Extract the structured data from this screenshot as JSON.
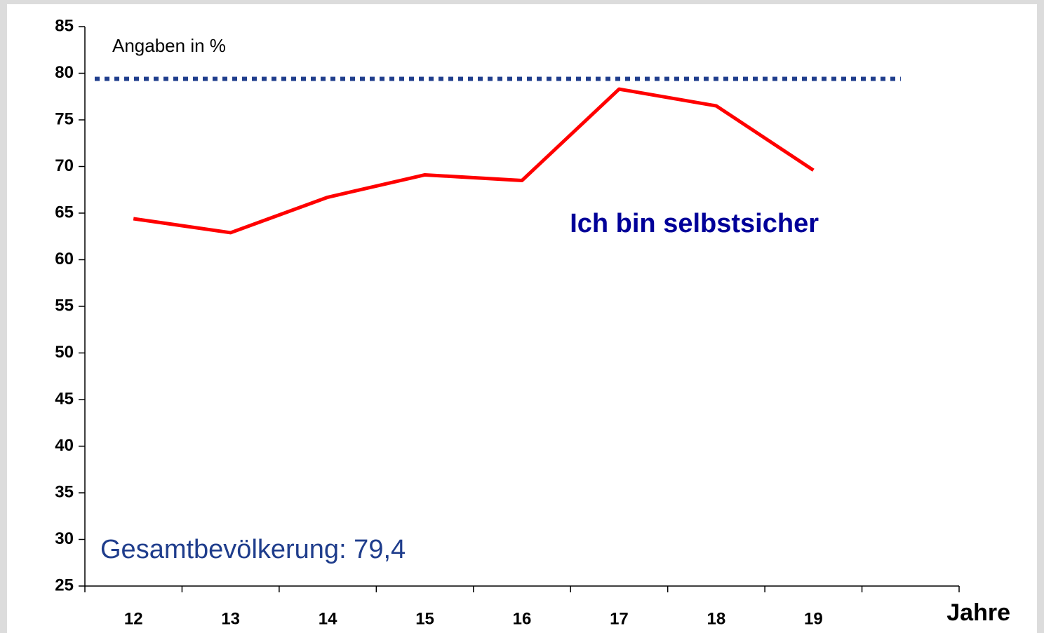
{
  "chart_data": {
    "type": "line",
    "categories": [
      "12",
      "13",
      "14",
      "15",
      "16",
      "17",
      "18",
      "19",
      null
    ],
    "series": [
      {
        "name": "Ich bin selbstsicher",
        "color": "#ff0000",
        "values": [
          64.4,
          62.9,
          66.7,
          69.1,
          68.5,
          78.3,
          76.5,
          69.6,
          null
        ]
      }
    ],
    "annotation": "Angaben in %",
    "x_label": "Jahre",
    "reference": {
      "value": 79.4,
      "label": "Gesamtbevölkerung: 79,4",
      "color": "#1f3d8c"
    },
    "ylim": [
      25,
      85
    ],
    "yticks": [
      25,
      30,
      35,
      40,
      45,
      50,
      55,
      60,
      65,
      70,
      75,
      80,
      85
    ],
    "grid": false
  }
}
